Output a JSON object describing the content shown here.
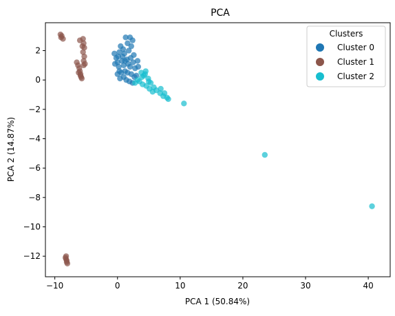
{
  "chart_data": {
    "type": "scatter",
    "title": "PCA",
    "xlabel": "PCA 1 (50.84%)",
    "ylabel": "PCA 2 (14.87%)",
    "xlim": [
      -11.5,
      43.5
    ],
    "ylim": [
      -13.4,
      3.9
    ],
    "xticks": [
      -10,
      0,
      10,
      20,
      30,
      40
    ],
    "yticks": [
      -12,
      -10,
      -8,
      -6,
      -4,
      -2,
      0,
      2
    ],
    "grid": false,
    "legend": {
      "title": "Clusters",
      "position": "top-right"
    },
    "series": [
      {
        "name": "Cluster 0",
        "color": "#1f77b4",
        "points": [
          [
            -0.5,
            1.8
          ],
          [
            -0.2,
            1.5
          ],
          [
            0.0,
            1.2
          ],
          [
            0.3,
            1.9
          ],
          [
            0.5,
            2.3
          ],
          [
            0.8,
            1.6
          ],
          [
            1.0,
            1.0
          ],
          [
            1.2,
            0.6
          ],
          [
            1.5,
            1.4
          ],
          [
            1.8,
            2.0
          ],
          [
            2.0,
            0.9
          ],
          [
            2.2,
            0.4
          ],
          [
            2.5,
            1.2
          ],
          [
            2.8,
            0.8
          ],
          [
            3.0,
            0.3
          ],
          [
            0.2,
            0.9
          ],
          [
            0.6,
            0.5
          ],
          [
            1.0,
            0.2
          ],
          [
            1.4,
            0.0
          ],
          [
            1.9,
            -0.1
          ],
          [
            2.4,
            -0.2
          ],
          [
            0.0,
            0.4
          ],
          [
            0.4,
            0.1
          ],
          [
            1.3,
            2.9
          ],
          [
            2.0,
            2.9
          ],
          [
            2.4,
            2.7
          ],
          [
            2.2,
            2.3
          ],
          [
            1.6,
            2.5
          ],
          [
            0.1,
            1.6
          ],
          [
            0.7,
            1.3
          ],
          [
            1.1,
            1.8
          ],
          [
            1.7,
            1.1
          ],
          [
            2.6,
            1.7
          ],
          [
            3.2,
            1.3
          ],
          [
            0.9,
            2.1
          ],
          [
            -0.4,
            1.1
          ],
          [
            0.3,
            0.6
          ],
          [
            1.6,
            0.5
          ],
          [
            2.7,
            0.2
          ],
          [
            3.3,
            0.9
          ],
          [
            1.2,
            1.3
          ],
          [
            2.1,
            1.5
          ]
        ]
      },
      {
        "name": "Cluster 1",
        "color": "#8c564b",
        "points": [
          [
            -9.1,
            3.1
          ],
          [
            -8.9,
            3.0
          ],
          [
            -8.7,
            2.8
          ],
          [
            -9.0,
            2.9
          ],
          [
            -6.0,
            2.7
          ],
          [
            -5.5,
            2.8
          ],
          [
            -5.4,
            2.5
          ],
          [
            -5.3,
            2.2
          ],
          [
            -5.5,
            1.9
          ],
          [
            -5.3,
            1.6
          ],
          [
            -5.4,
            1.3
          ],
          [
            -5.2,
            1.1
          ],
          [
            -5.6,
            2.3
          ],
          [
            -5.4,
            1.0
          ],
          [
            -6.5,
            1.2
          ],
          [
            -6.3,
            1.0
          ],
          [
            -6.1,
            0.8
          ],
          [
            -6.0,
            0.6
          ],
          [
            -5.9,
            0.4
          ],
          [
            -5.8,
            0.2
          ],
          [
            -5.7,
            0.1
          ],
          [
            -6.2,
            0.5
          ],
          [
            -5.9,
            0.3
          ],
          [
            -8.2,
            -12.0
          ],
          [
            -8.2,
            -12.2
          ],
          [
            -8.1,
            -12.4
          ],
          [
            -8.0,
            -12.5
          ],
          [
            -8.3,
            -12.1
          ],
          [
            -8.1,
            -12.3
          ]
        ]
      },
      {
        "name": "Cluster 2",
        "color": "#17becf",
        "points": [
          [
            3.8,
            0.5
          ],
          [
            4.2,
            0.3
          ],
          [
            4.5,
            0.6
          ],
          [
            4.9,
            0.1
          ],
          [
            5.3,
            -0.2
          ],
          [
            5.8,
            -0.5
          ],
          [
            6.2,
            -0.7
          ],
          [
            6.8,
            -0.9
          ],
          [
            7.3,
            -1.1
          ],
          [
            7.9,
            -1.2
          ],
          [
            8.1,
            -1.3
          ],
          [
            3.5,
            -0.1
          ],
          [
            4.0,
            -0.3
          ],
          [
            4.6,
            -0.4
          ],
          [
            5.1,
            -0.6
          ],
          [
            5.6,
            -0.8
          ],
          [
            3.2,
            0.0
          ],
          [
            2.8,
            -0.2
          ],
          [
            6.9,
            -0.6
          ],
          [
            4.4,
            0.4
          ],
          [
            5.0,
            -0.1
          ],
          [
            3.9,
            0.2
          ],
          [
            7.5,
            -0.9
          ],
          [
            10.6,
            -1.6
          ],
          [
            23.5,
            -5.1
          ],
          [
            40.6,
            -8.6
          ]
        ]
      }
    ]
  }
}
